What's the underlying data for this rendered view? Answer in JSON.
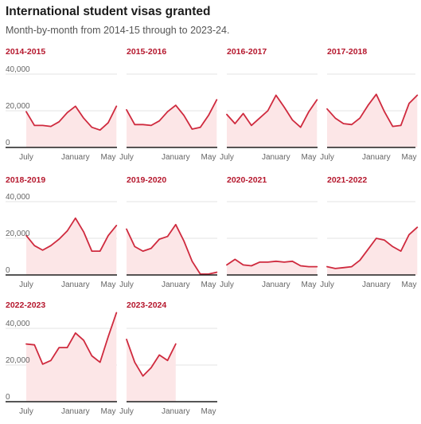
{
  "title": "International student visas granted",
  "subtitle": "Month-by-month from 2014-15 through to 2023-24.",
  "colors": {
    "line": "#cf2a3e",
    "area": "#fce6e7",
    "panel_title": "#b5172d"
  },
  "chart_data": [
    {
      "type": "area",
      "title": "2014-2015",
      "x": [
        "Jul",
        "Aug",
        "Sep",
        "Oct",
        "Nov",
        "Dec",
        "Jan",
        "Feb",
        "Mar",
        "Apr",
        "May",
        "Jun"
      ],
      "values": [
        19500,
        12000,
        12000,
        11500,
        14000,
        19000,
        22500,
        16000,
        11000,
        9500,
        13500,
        22500
      ],
      "ylim": [
        0,
        40000
      ],
      "yticks": [
        "40,000",
        "20,000",
        "0"
      ],
      "xticks": [
        "July",
        "January",
        "May"
      ]
    },
    {
      "type": "area",
      "title": "2015-2016",
      "x": [
        "Jul",
        "Aug",
        "Sep",
        "Oct",
        "Nov",
        "Dec",
        "Jan",
        "Feb",
        "Mar",
        "Apr",
        "May",
        "Jun"
      ],
      "values": [
        20500,
        12500,
        12500,
        12000,
        14500,
        19500,
        23000,
        17500,
        10000,
        11000,
        17500,
        26000
      ],
      "ylim": [
        0,
        40000
      ]
    },
    {
      "type": "area",
      "title": "2016-2017",
      "x": [
        "Jul",
        "Aug",
        "Sep",
        "Oct",
        "Nov",
        "Dec",
        "Jan",
        "Feb",
        "Mar",
        "Apr",
        "May",
        "Jun"
      ],
      "values": [
        18000,
        13000,
        18500,
        12000,
        16000,
        20000,
        28500,
        22000,
        15000,
        11000,
        19500,
        26000
      ],
      "ylim": [
        0,
        40000
      ]
    },
    {
      "type": "area",
      "title": "2017-2018",
      "x": [
        "Jul",
        "Aug",
        "Sep",
        "Oct",
        "Nov",
        "Dec",
        "Jan",
        "Feb",
        "Mar",
        "Apr",
        "May",
        "Jun"
      ],
      "values": [
        21000,
        16000,
        13000,
        12500,
        16000,
        23000,
        29000,
        19500,
        11500,
        12000,
        24000,
        28500
      ],
      "ylim": [
        0,
        40000
      ]
    },
    {
      "type": "area",
      "title": "2018-2019",
      "x": [
        "Jul",
        "Aug",
        "Sep",
        "Oct",
        "Nov",
        "Dec",
        "Jan",
        "Feb",
        "Mar",
        "Apr",
        "May",
        "Jun"
      ],
      "values": [
        21500,
        16000,
        13500,
        16000,
        19500,
        24000,
        31000,
        23500,
        13000,
        13000,
        21500,
        27000
      ],
      "ylim": [
        0,
        40000
      ],
      "yticks": [
        "40,000",
        "20,000",
        "0"
      ],
      "xticks": [
        "July",
        "January",
        "May"
      ]
    },
    {
      "type": "area",
      "title": "2019-2020",
      "x": [
        "Jul",
        "Aug",
        "Sep",
        "Oct",
        "Nov",
        "Dec",
        "Jan",
        "Feb",
        "Mar",
        "Apr",
        "May",
        "Jun"
      ],
      "values": [
        25000,
        15500,
        13000,
        14500,
        19500,
        21000,
        27500,
        18500,
        7500,
        500,
        500,
        1500
      ],
      "ylim": [
        0,
        40000
      ]
    },
    {
      "type": "area",
      "title": "2020-2021",
      "x": [
        "Jul",
        "Aug",
        "Sep",
        "Oct",
        "Nov",
        "Dec",
        "Jan",
        "Feb",
        "Mar",
        "Apr",
        "May",
        "Jun"
      ],
      "values": [
        5500,
        8500,
        5500,
        5000,
        7000,
        7000,
        7500,
        7000,
        7500,
        5000,
        4500,
        4500
      ],
      "ylim": [
        0,
        40000
      ]
    },
    {
      "type": "area",
      "title": "2021-2022",
      "x": [
        "Jul",
        "Aug",
        "Sep",
        "Oct",
        "Nov",
        "Dec",
        "Jan",
        "Feb",
        "Mar",
        "Apr",
        "May",
        "Jun"
      ],
      "values": [
        4500,
        3500,
        4000,
        4500,
        8000,
        14000,
        20000,
        19000,
        15500,
        13000,
        22000,
        26000
      ],
      "ylim": [
        0,
        40000
      ]
    },
    {
      "type": "area",
      "title": "2022-2023",
      "x": [
        "Jul",
        "Aug",
        "Sep",
        "Oct",
        "Nov",
        "Dec",
        "Jan",
        "Feb",
        "Mar",
        "Apr",
        "May",
        "Jun"
      ],
      "values": [
        31500,
        31000,
        20500,
        22500,
        29500,
        29500,
        37500,
        33500,
        25000,
        21500,
        35500,
        48500
      ],
      "ylim": [
        0,
        40000
      ],
      "yticks": [
        "40,000",
        "20,000",
        "0"
      ],
      "xticks": [
        "July",
        "January",
        "May"
      ]
    },
    {
      "type": "area",
      "title": "2023-2024",
      "x": [
        "Jul",
        "Aug",
        "Sep",
        "Oct",
        "Nov",
        "Dec",
        "Jan"
      ],
      "values": [
        34000,
        21500,
        14000,
        18500,
        25500,
        22500,
        31500
      ],
      "ylim": [
        0,
        40000
      ],
      "xticks": [
        "July",
        "January",
        "May"
      ]
    }
  ]
}
